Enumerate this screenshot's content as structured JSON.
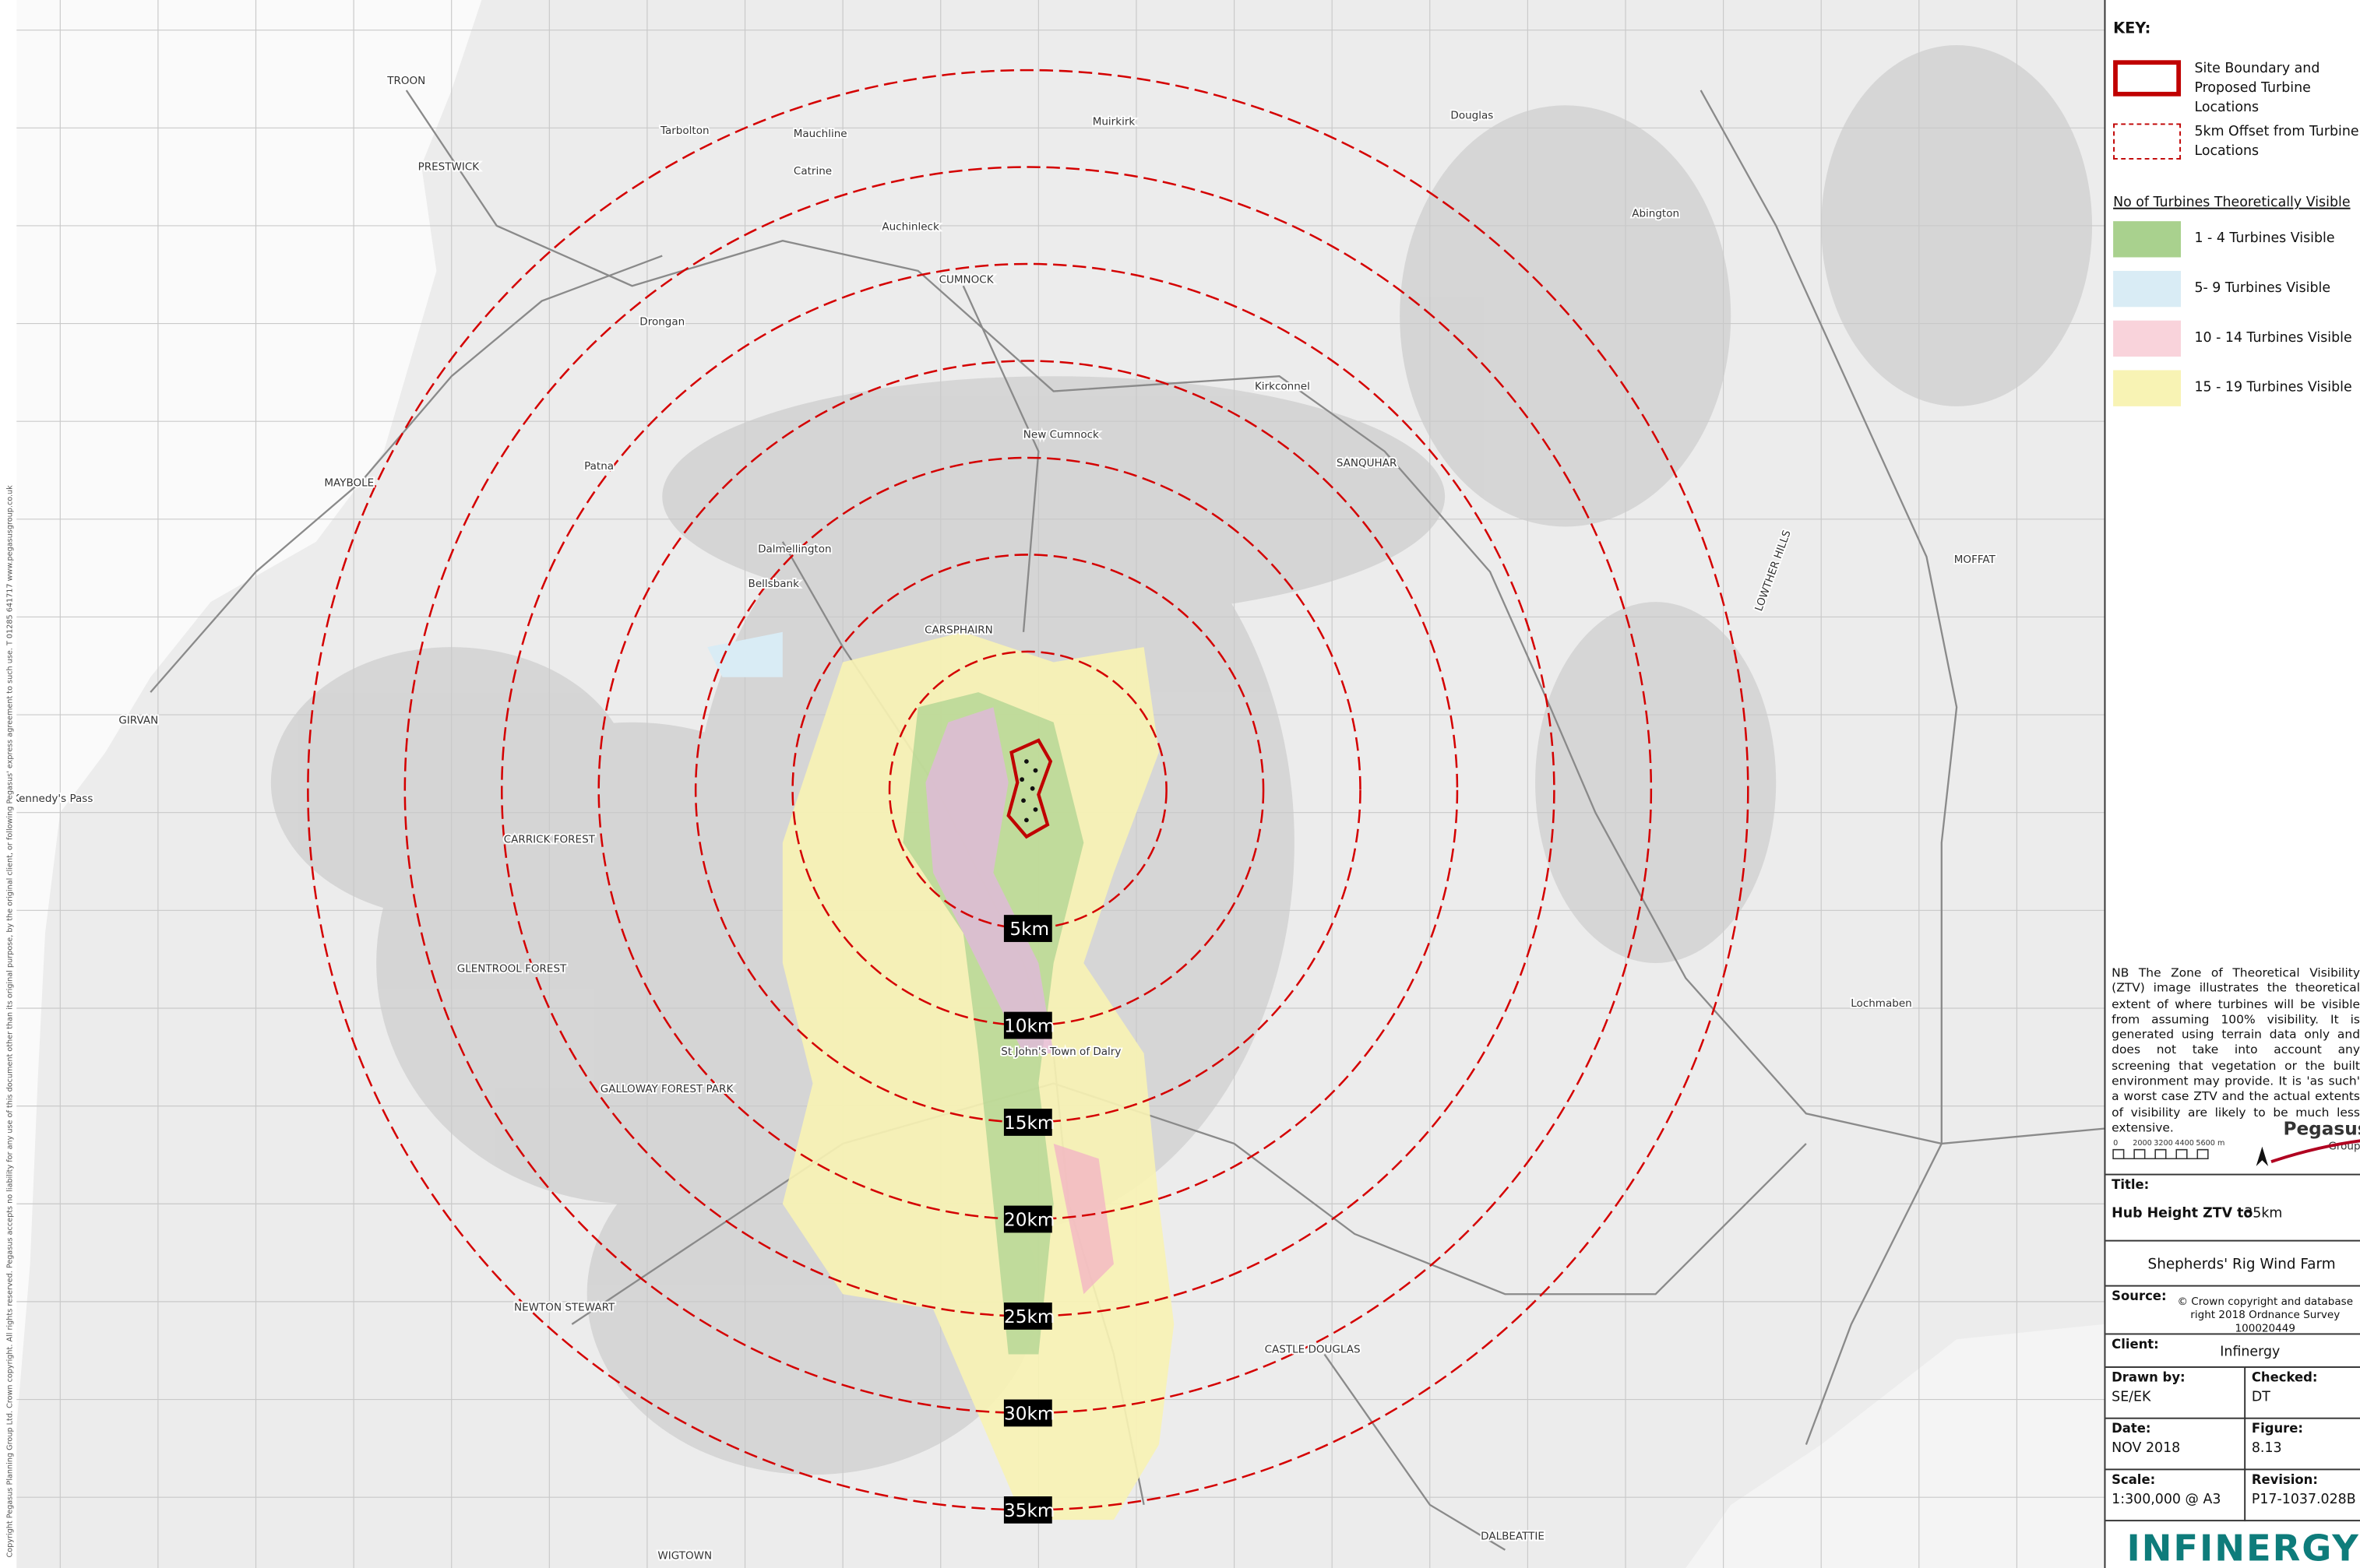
{
  "key": {
    "title": "KEY:",
    "boundary": "Site Boundary and Proposed Turbine Locations",
    "offset": "5km Offset from Turbine Locations",
    "ztv_heading": "No of Turbines Theoretically Visible",
    "ztv_items": [
      {
        "label": "1 - 4  Turbines Visible",
        "color": "#a9d18e"
      },
      {
        "label": "5- 9 Turbines Visible",
        "color": "#d9ecf5"
      },
      {
        "label": "10 - 14 Turbines Visible",
        "color": "#f9d3db"
      },
      {
        "label": "15 - 19 Turbines Visible",
        "color": "#f8f3b4"
      }
    ]
  },
  "note": "NB The Zone of Theoretical Visibility (ZTV) image illustrates the theoretical extent of where turbines will be visible from assuming 100% visibility. It is generated using terrain data only and does not take into account any screening that vegetation or the built environment may provide. It is 'as such' a worst case ZTV and the actual extents of visibility are likely to be much less extensive.",
  "scale_bar": [
    "0",
    "2000",
    "3200",
    "4400",
    "5600 m"
  ],
  "pegasus": {
    "name": "Pegasus",
    "sub": "Group"
  },
  "title_block": {
    "title_label": "Title:",
    "title": "Hub Height ZTV to",
    "title_suffix": "35km",
    "project": "Shepherds' Rig Wind Farm",
    "source_label": "Source:",
    "source": "© Crown copyright and database right 2018 Ordnance Survey 100020449",
    "client_label": "Client:",
    "client": "Infinergy",
    "drawn_label": "Drawn by:",
    "drawn": "SE/EK",
    "checked_label": "Checked:",
    "checked": "DT",
    "date_label": "Date:",
    "date": "NOV 2018",
    "figure_label": "Figure:",
    "figure": "8.13",
    "scale_label": "Scale:",
    "scale": "1:300,000 @ A3",
    "revision_label": "Revision:",
    "revision": "P17-1037.028B",
    "logo": "INFINERGY"
  },
  "rings": [
    {
      "label": "5km"
    },
    {
      "label": "10km"
    },
    {
      "label": "15km"
    },
    {
      "label": "20km"
    },
    {
      "label": "25km"
    },
    {
      "label": "30km"
    },
    {
      "label": "35km"
    }
  ],
  "places": [
    {
      "label": "TROON"
    },
    {
      "label": "PRESTWICK"
    },
    {
      "label": "Tarbolton"
    },
    {
      "label": "Mauchline"
    },
    {
      "label": "Catrine"
    },
    {
      "label": "Auchinleck"
    },
    {
      "label": "CUMNOCK"
    },
    {
      "label": "MAYBOLE"
    },
    {
      "label": "Drongan"
    },
    {
      "label": "New Cumnock"
    },
    {
      "label": "Kirkconnel"
    },
    {
      "label": "SANQUHAR"
    },
    {
      "label": "Patna"
    },
    {
      "label": "Dalmellington"
    },
    {
      "label": "Bellsbank"
    },
    {
      "label": "CARSPHAIRN"
    },
    {
      "label": "Muirkirk"
    },
    {
      "label": "Douglas"
    },
    {
      "label": "Abington"
    },
    {
      "label": "MOFFAT"
    },
    {
      "label": "GIRVAN"
    },
    {
      "label": "Lochmaben"
    },
    {
      "label": "DALBEATTIE"
    },
    {
      "label": "CASTLE DOUGLAS"
    },
    {
      "label": "St John's Town of Dalry"
    },
    {
      "label": "WIGTOWN"
    },
    {
      "label": "NEWTON STEWART"
    },
    {
      "label": "GALLOWAY FOREST PARK"
    },
    {
      "label": "GLENTROOL FOREST"
    },
    {
      "label": "Kennedy's Pass"
    },
    {
      "label": "LOWTHER HILLS"
    },
    {
      "label": "CARRICK FOREST"
    }
  ],
  "copyright_strip": "Copyright Pegasus Planning Group Ltd. Crown copyright. All rights reserved. Pegasus accepts no liability for any use of this document other than its original purpose, by the original client, or following Pegasus' express agreement to such use. T 01285 641717 www.pegasusgroup.co.uk"
}
